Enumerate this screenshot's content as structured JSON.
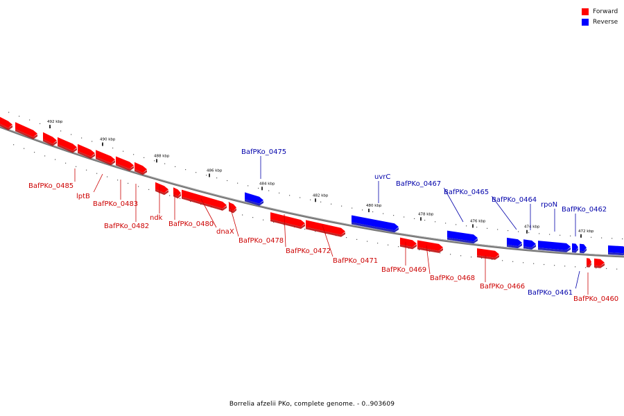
{
  "title": "Borrelia afzelii PKo, complete genome. - 0..903609",
  "colors": {
    "forward": "#ff0000",
    "reverse": "#0000ff",
    "forward_dark": "#b80000",
    "reverse_dark": "#0000b0",
    "forward_label": "#cc0000",
    "reverse_label": "#0000aa",
    "backbone": "#777777"
  },
  "legend": [
    {
      "label": "Forward",
      "color": "#ff0000"
    },
    {
      "label": "Reverse",
      "color": "#0000ff"
    }
  ],
  "ticks": [
    "492 kbp",
    "490 kbp",
    "488 kbp",
    "486 kbp",
    "484 kbp",
    "482 kbp",
    "480 kbp",
    "478 kbp",
    "476 kbp",
    "474 kbp",
    "472 kbp"
  ],
  "genes": [
    {
      "label": "BafPKo_0485",
      "strand": "forward"
    },
    {
      "label": "lptB",
      "strand": "forward"
    },
    {
      "label": "BafPKo_0483",
      "strand": "forward"
    },
    {
      "label": "BafPKo_0482",
      "strand": "forward"
    },
    {
      "label": "ndk",
      "strand": "forward"
    },
    {
      "label": "BafPKo_0480",
      "strand": "forward"
    },
    {
      "label": "dnaX",
      "strand": "forward"
    },
    {
      "label": "BafPKo_0478",
      "strand": "forward"
    },
    {
      "label": "BafPKo_0475",
      "strand": "reverse"
    },
    {
      "label": "BafPKo_0472",
      "strand": "forward"
    },
    {
      "label": "BafPKo_0471",
      "strand": "forward"
    },
    {
      "label": "uvrC",
      "strand": "reverse"
    },
    {
      "label": "BafPKo_0469",
      "strand": "forward"
    },
    {
      "label": "BafPKo_0468",
      "strand": "forward"
    },
    {
      "label": "BafPKo_0467",
      "strand": "reverse"
    },
    {
      "label": "BafPKo_0466",
      "strand": "forward"
    },
    {
      "label": "BafPKo_0465",
      "strand": "reverse"
    },
    {
      "label": "BafPKo_0464",
      "strand": "reverse"
    },
    {
      "label": "rpoN",
      "strand": "reverse"
    },
    {
      "label": "BafPKo_0462",
      "strand": "reverse"
    },
    {
      "label": "BafPKo_0461",
      "strand": "reverse"
    },
    {
      "label": "BafPKo_0460",
      "strand": "forward"
    }
  ]
}
